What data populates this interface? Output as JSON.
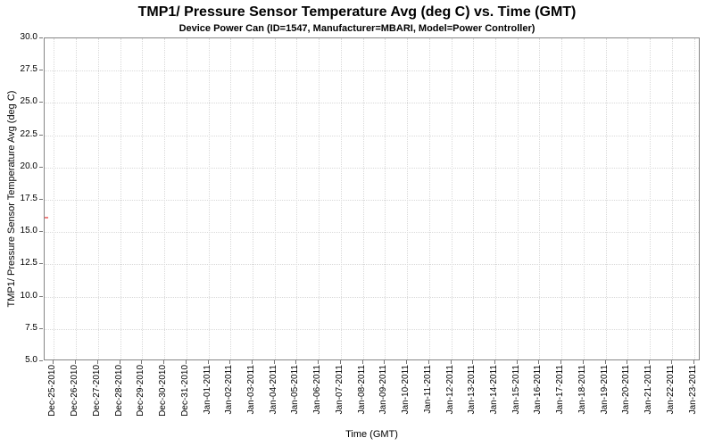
{
  "chart_data": {
    "type": "line",
    "title": "TMP1/ Pressure Sensor Temperature Avg (deg C) vs. Time (GMT)",
    "subtitle": "Device Power Can (ID=1547, Manufacturer=MBARI, Model=Power Controller)",
    "xlabel": "Time (GMT)",
    "ylabel": "TMP1/ Pressure Sensor Temperature Avg (deg C)",
    "ylim": [
      5.0,
      30.0
    ],
    "ytick_step": 2.5,
    "yticks": [
      "30.0",
      "27.5",
      "25.0",
      "22.5",
      "20.0",
      "17.5",
      "15.0",
      "12.5",
      "10.0",
      "7.5",
      "5.0"
    ],
    "xticklabels": [
      "Dec-25-2010",
      "Dec-26-2010",
      "Dec-27-2010",
      "Dec-28-2010",
      "Dec-29-2010",
      "Dec-30-2010",
      "Dec-31-2010",
      "Jan-01-2011",
      "Jan-02-2011",
      "Jan-03-2011",
      "Jan-04-2011",
      "Jan-05-2011",
      "Jan-06-2011",
      "Jan-07-2011",
      "Jan-08-2011",
      "Jan-09-2011",
      "Jan-10-2011",
      "Jan-11-2011",
      "Jan-12-2011",
      "Jan-13-2011",
      "Jan-14-2011",
      "Jan-15-2011",
      "Jan-16-2011",
      "Jan-17-2011",
      "Jan-18-2011",
      "Jan-19-2011",
      "Jan-20-2011",
      "Jan-21-2011",
      "Jan-22-2011",
      "Jan-23-2011"
    ],
    "xlim_days": [
      -0.42,
      29.3
    ],
    "grid": true,
    "legend": "none",
    "colors": {
      "plot_border": "#858585",
      "gridline": "#d9d9d9",
      "tick": "#757575",
      "text": "#000000",
      "background": "#ffffff"
    },
    "series": [
      {
        "name": "TMP1/ Pressure Sensor Temperature Avg (deg C)",
        "color": "#f08080",
        "points": [
          {
            "day": -0.42,
            "value": 16.1
          },
          {
            "day": -0.26,
            "value": 16.1
          }
        ],
        "note": "Only a tiny flat data segment is visible at the far-left edge of the plot, at about 16.1 deg C, just before the Dec-25-2010 tick."
      }
    ]
  }
}
